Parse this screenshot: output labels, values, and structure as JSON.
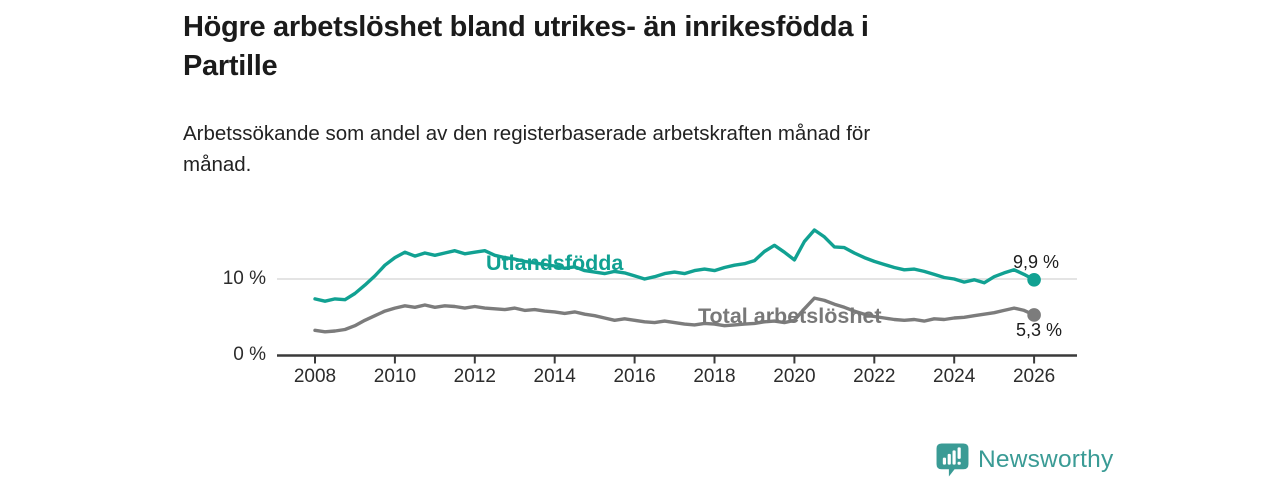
{
  "header": {
    "title": "Högre arbetslöshet bland utrikes- än inrikesfödda i\nPartille",
    "subtitle": "Arbetssökande som andel av den registerbaserade arbetskraften månad för\nmånad."
  },
  "chart_data": {
    "type": "line",
    "title": "Högre arbetslöshet bland utrikes- än inrikesfödda i Partille",
    "subtitle": "Arbetssökande som andel av den registerbaserade arbetskraften månad för månad.",
    "unit": "%",
    "decimal_separator": ",",
    "grid": "single horizontal gridline at 10 %",
    "legend_position": "inline labels on lines",
    "x_axis": {
      "ticks": [
        2008,
        2010,
        2012,
        2014,
        2016,
        2018,
        2020,
        2022,
        2024,
        2026
      ],
      "tick_labels": [
        "2008",
        "2010",
        "2012",
        "2014",
        "2016",
        "2018",
        "2020",
        "2022",
        "2024",
        "2026"
      ],
      "range": [
        2008,
        2026
      ]
    },
    "y_axis": {
      "tick_values": [
        0,
        10
      ],
      "tick_labels": [
        "0 %",
        "10 %"
      ],
      "ylim": [
        0,
        17.5
      ]
    },
    "x_start": 2008.0,
    "x_step_years": 0.25,
    "x_end": 2026.0,
    "series": [
      {
        "name": "Utlandsfödda",
        "color": "#11a192",
        "end_value": 9.9,
        "end_label": "9,9 %",
        "values": [
          7.4,
          7.1,
          7.4,
          7.3,
          8.1,
          9.2,
          10.4,
          11.8,
          12.8,
          13.5,
          13.0,
          13.4,
          13.1,
          13.4,
          13.7,
          13.3,
          13.5,
          13.7,
          13.1,
          12.8,
          12.6,
          12.3,
          12.1,
          11.9,
          11.7,
          11.4,
          11.6,
          11.1,
          10.9,
          10.7,
          11.0,
          10.8,
          10.4,
          10.0,
          10.3,
          10.7,
          10.9,
          10.7,
          11.1,
          11.3,
          11.1,
          11.5,
          11.8,
          12.0,
          12.4,
          13.6,
          14.4,
          13.5,
          12.5,
          14.9,
          16.4,
          15.5,
          14.2,
          14.1,
          13.4,
          12.8,
          12.3,
          11.9,
          11.5,
          11.2,
          11.3,
          11.0,
          10.6,
          10.2,
          10.0,
          9.6,
          9.9,
          9.5,
          10.3,
          10.8,
          11.2,
          10.6,
          9.9
        ]
      },
      {
        "name": "Total arbetslöshet",
        "color": "#7c7c7c",
        "label_color": "#787878",
        "end_value": 5.3,
        "end_label": "5,3 %",
        "values": [
          3.3,
          3.1,
          3.2,
          3.4,
          3.9,
          4.6,
          5.2,
          5.8,
          6.2,
          6.5,
          6.3,
          6.6,
          6.3,
          6.5,
          6.4,
          6.2,
          6.4,
          6.2,
          6.1,
          6.0,
          6.2,
          5.9,
          6.0,
          5.8,
          5.7,
          5.5,
          5.7,
          5.4,
          5.2,
          4.9,
          4.6,
          4.8,
          4.6,
          4.4,
          4.3,
          4.5,
          4.3,
          4.1,
          4.0,
          4.2,
          4.1,
          3.9,
          4.0,
          4.1,
          4.2,
          4.4,
          4.5,
          4.3,
          4.6,
          6.1,
          7.5,
          7.2,
          6.7,
          6.3,
          5.8,
          5.4,
          5.1,
          4.9,
          4.7,
          4.6,
          4.7,
          4.5,
          4.8,
          4.7,
          4.9,
          5.0,
          5.2,
          5.4,
          5.6,
          5.9,
          6.2,
          5.9,
          5.3
        ]
      }
    ],
    "annotations": {
      "axis_color": "#3a3a3a",
      "gridline_color": "#dcdcdc"
    }
  },
  "footer": {
    "brand": "Newsworthy",
    "brand_color": "#3a9b95",
    "logo_icon": "bar-chart-speech-bubble-icon"
  }
}
